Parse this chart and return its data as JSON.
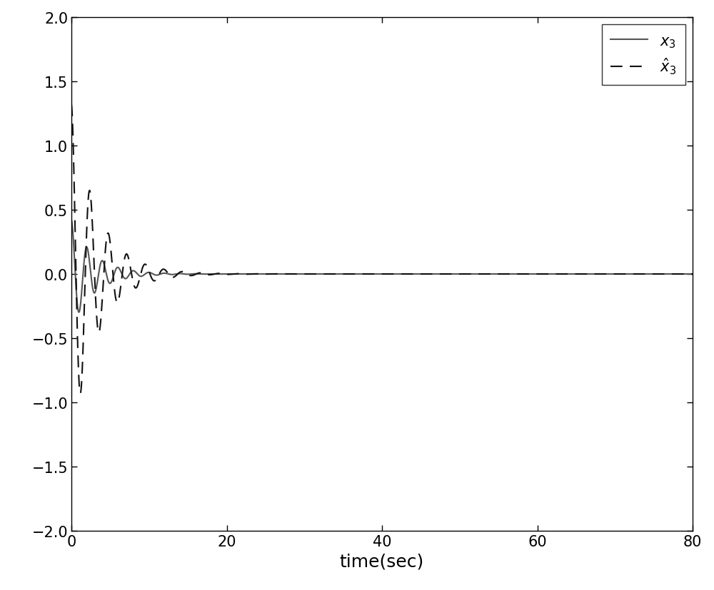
{
  "title": "",
  "xlabel": "time(sec)",
  "ylabel": "",
  "xlim": [
    0,
    80
  ],
  "ylim": [
    -2,
    2
  ],
  "xticks": [
    0,
    20,
    40,
    60,
    80
  ],
  "yticks": [
    -2,
    -1.5,
    -1,
    -0.5,
    0,
    0.5,
    1,
    1.5,
    2
  ],
  "legend_labels": [
    "$x_3$",
    "$\\hat{x}_3$"
  ],
  "line1_color": "#555555",
  "line2_color": "#111111",
  "line1_style": "solid",
  "line2_style": "dashed",
  "line_width": 1.5,
  "xlabel_fontsize": 18,
  "tick_fontsize": 15,
  "legend_fontsize": 15,
  "background_color": "#ffffff"
}
